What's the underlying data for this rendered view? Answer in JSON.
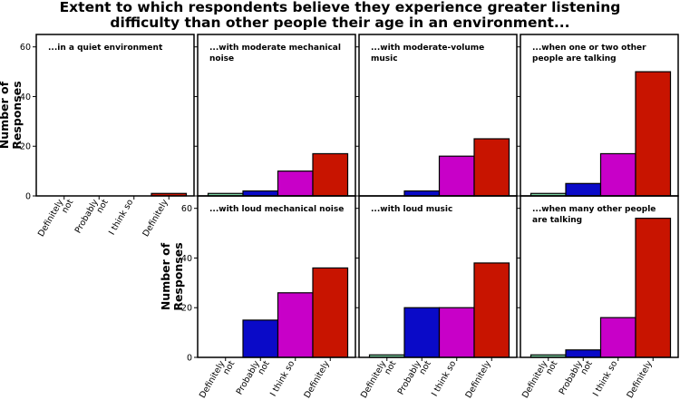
{
  "chart_data": {
    "type": "bar",
    "title_lines": [
      "Extent to which respondents believe they experience greater listening",
      "difficulty than other people their age in an environment..."
    ],
    "ylabel_lines": [
      "Number of",
      "Responses"
    ],
    "categories": [
      "Definitely not",
      "Probably not",
      "I think so",
      "Definitely"
    ],
    "category_label_lines": [
      [
        "Definitely",
        "not"
      ],
      [
        "Probably",
        "not"
      ],
      [
        "I think so"
      ],
      [
        "Definitely"
      ]
    ],
    "category_colors": [
      "#7fd6a6",
      "#0a0ac8",
      "#c800c8",
      "#c81400"
    ],
    "ylim": [
      0,
      65
    ],
    "yticks": [
      0,
      20,
      40,
      60
    ],
    "panels": [
      {
        "title_lines": [
          "...in a quiet environment"
        ],
        "values": [
          0,
          0,
          0,
          1
        ]
      },
      {
        "title_lines": [
          "...with moderate mechanical",
          "noise"
        ],
        "values": [
          1,
          2,
          10,
          17
        ]
      },
      {
        "title_lines": [
          "...with moderate-volume",
          "music"
        ],
        "values": [
          0,
          2,
          16,
          23
        ]
      },
      {
        "title_lines": [
          "...when one or two other",
          "people are talking"
        ],
        "values": [
          1,
          5,
          17,
          50
        ]
      },
      {
        "title_lines": [
          "...with loud mechanical noise"
        ],
        "values": [
          0,
          15,
          26,
          36
        ]
      },
      {
        "title_lines": [
          "...with loud music"
        ],
        "values": [
          1,
          20,
          20,
          38
        ]
      },
      {
        "title_lines": [
          "...when many other people",
          "are talking"
        ],
        "values": [
          1,
          3,
          16,
          56
        ]
      }
    ]
  }
}
